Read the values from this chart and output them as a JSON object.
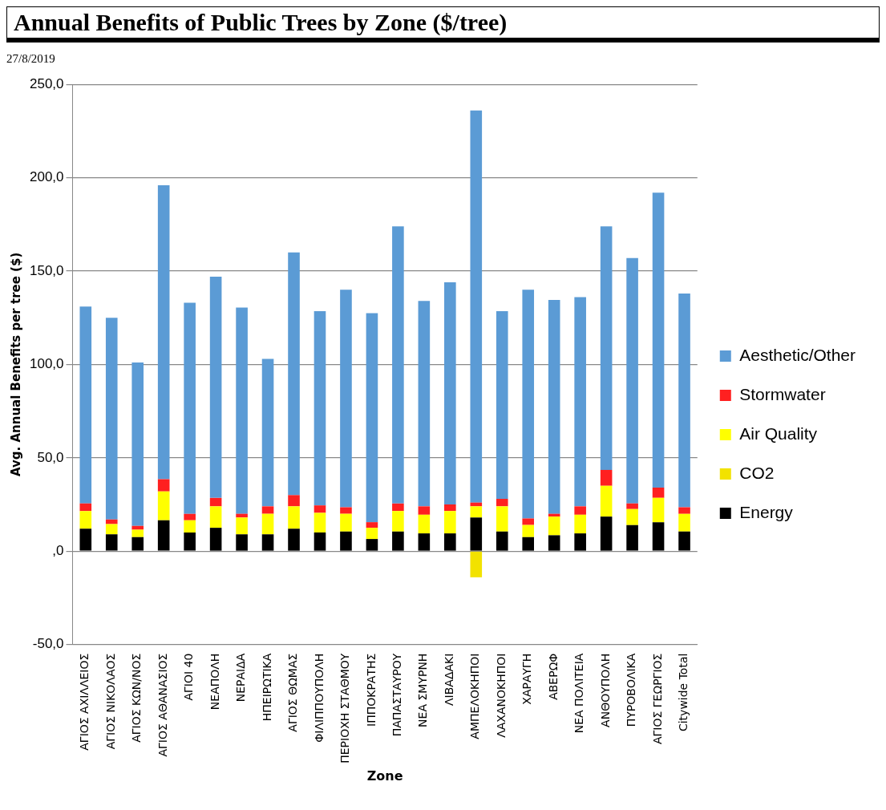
{
  "chart_data": {
    "type": "bar",
    "title": "Annual Benefits of Public Trees by Zone ($/tree)",
    "subtitle": "27/8/2019",
    "xlabel": "Zone",
    "ylabel": "Avg. Annual Benefits per tree ($)",
    "categories": [
      "ΑΓΙΟΣ ΑΧΙΛΛΕΙΟΣ",
      "ΑΓΙΟΣ ΝΙΚΟΛΑΟΣ",
      "ΑΓΙΟΣ ΚΩΝ/ΝΟΣ",
      "ΑΓΙΟΣ ΑΘΑΝΑΣΙΟΣ",
      "ΑΓΙΟΙ 40",
      "ΝΕΑΠΟΛΗ",
      "ΝΕΡΑΙΔΑ",
      "ΗΠΕΙΡΩΤΙΚΑ",
      "ΑΓΙΟΣ ΘΩΜΑΣ",
      "ΦΙΛΙΠΠΟΥΠΟΛΗ",
      "ΠΕΡΙΟΧΗ ΣΤΑΘΜΟΥ",
      "ΙΠΠΟΚΡΑΤΗΣ",
      "ΠΑΠΑΣΤΑΥΡΟΥ",
      "ΝΕΑ ΣΜΥΡΝΗ",
      "ΛΙΒΑΔΑΚΙ",
      "ΑΜΠΕΛΟΚΗΠΟΙ",
      "ΛΑΧΑΝΟΚΗΠΟΙ",
      "ΧΑΡΑΥΓΗ",
      "ΑΒΕΡΩΦ",
      "ΝΕΑ ΠΟΛΙΤΕΙΑ",
      "ΑΝΘΟΥΠΟΛΗ",
      "ΠΥΡΟΒΟΛΙΚΑ",
      "ΑΓΙΟΣ ΓΕΩΡΓΙΟΣ",
      "Citywide Total"
    ],
    "series": [
      {
        "name": "Energy",
        "color": "#000000",
        "values": [
          12,
          9,
          7.5,
          16.5,
          10,
          12.5,
          9,
          9,
          12,
          10,
          10.5,
          6.5,
          10.5,
          9.5,
          9.5,
          18,
          10.5,
          7.5,
          8.5,
          9.5,
          18.5,
          14,
          15.5,
          10.5
        ]
      },
      {
        "name": "CO2",
        "color": "#f2e200",
        "values": [
          0,
          0,
          0,
          0,
          0,
          0,
          0,
          0,
          0,
          0,
          0,
          0,
          0,
          0,
          0,
          -14,
          0,
          0,
          0,
          0,
          0,
          0,
          0,
          0
        ]
      },
      {
        "name": "Air Quality",
        "color": "#ffff00",
        "values": [
          9.5,
          5.5,
          4,
          15.5,
          6.5,
          11.5,
          9,
          11,
          12,
          10.5,
          9.5,
          6,
          11,
          10,
          12,
          6,
          13.5,
          6.5,
          10,
          10,
          16.5,
          8.5,
          13,
          9.5
        ]
      },
      {
        "name": "Stormwater",
        "color": "#ff2020",
        "values": [
          4,
          2.5,
          2,
          6.5,
          3.5,
          4.5,
          2,
          4,
          6,
          4,
          3.5,
          3,
          4,
          4.5,
          3.5,
          2,
          4,
          3.5,
          1.5,
          4.5,
          8.5,
          3,
          5.5,
          3.5
        ]
      },
      {
        "name": "Aesthetic/Other",
        "color": "#5b9bd5",
        "values": [
          105.5,
          108,
          87.5,
          157.5,
          113,
          118.5,
          110.5,
          79,
          130,
          104,
          116.5,
          112,
          148.5,
          110,
          119,
          210,
          100.5,
          122.5,
          114.5,
          112,
          130.5,
          131.5,
          158,
          114.5
        ]
      }
    ],
    "stacked": true,
    "ylim": [
      -50,
      250
    ],
    "yticks": [
      {
        "value": -50,
        "label": "-50,0"
      },
      {
        "value": 0,
        "label": ",0"
      },
      {
        "value": 50,
        "label": "50,0"
      },
      {
        "value": 100,
        "label": "100,0"
      },
      {
        "value": 150,
        "label": "150,0"
      },
      {
        "value": 200,
        "label": "200,0"
      },
      {
        "value": 250,
        "label": "250,0"
      }
    ],
    "grid": "y",
    "legend": "right"
  }
}
